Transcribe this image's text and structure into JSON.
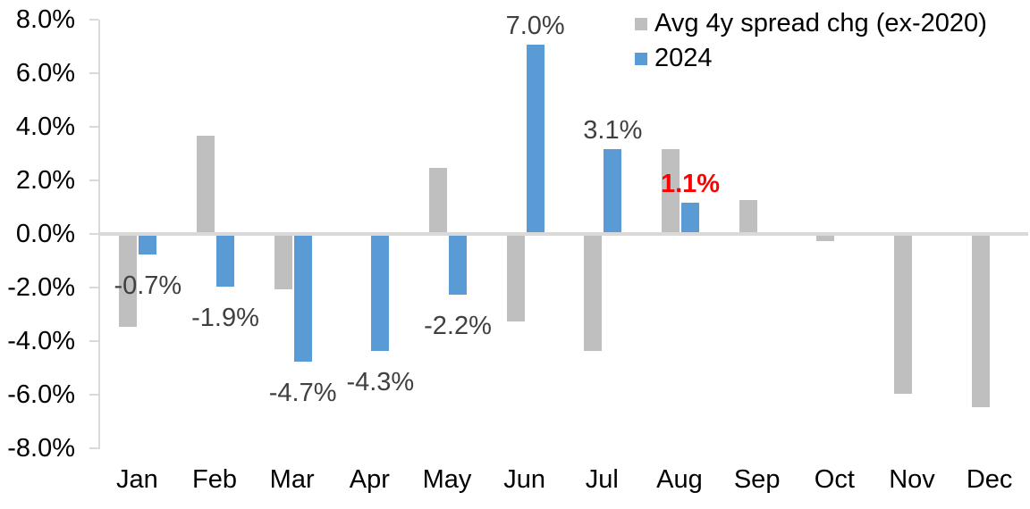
{
  "chart_data": {
    "type": "bar",
    "title": "",
    "xlabel": "",
    "ylabel": "",
    "categories": [
      "Jan",
      "Feb",
      "Mar",
      "Apr",
      "May",
      "Jun",
      "Jul",
      "Aug",
      "Sep",
      "Oct",
      "Nov",
      "Dec"
    ],
    "series": [
      {
        "name": "Avg 4y spread chg (ex-2020)",
        "color": "#BFBFBF",
        "values": [
          -3.4,
          3.6,
          -2.0,
          0.0,
          2.4,
          -3.2,
          -4.3,
          3.1,
          1.2,
          -0.2,
          -5.9,
          -6.4
        ]
      },
      {
        "name": "2024",
        "color": "#5B9BD5",
        "values": [
          -0.7,
          -1.9,
          -4.7,
          -4.3,
          -2.2,
          7.0,
          3.1,
          1.1,
          null,
          null,
          null,
          null
        ]
      }
    ],
    "data_labels": [
      {
        "category": "Jan",
        "text": "-0.7%",
        "color": "#404040",
        "bold": false
      },
      {
        "category": "Feb",
        "text": "-1.9%",
        "color": "#404040",
        "bold": false
      },
      {
        "category": "Mar",
        "text": "-4.7%",
        "color": "#404040",
        "bold": false
      },
      {
        "category": "Apr",
        "text": "-4.3%",
        "color": "#404040",
        "bold": false
      },
      {
        "category": "May",
        "text": "-2.2%",
        "color": "#404040",
        "bold": false
      },
      {
        "category": "Jun",
        "text": "7.0%",
        "color": "#404040",
        "bold": false
      },
      {
        "category": "Jul",
        "text": "3.1%",
        "color": "#404040",
        "bold": false
      },
      {
        "category": "Aug",
        "text": "1.1%",
        "color": "#FF0000",
        "bold": true
      }
    ],
    "y_axis": {
      "unit": "%",
      "min": -8.0,
      "max": 8.0,
      "tick_step": 2.0,
      "ticks": [
        "8.0%",
        "6.0%",
        "4.0%",
        "2.0%",
        "0.0%",
        "-2.0%",
        "-4.0%",
        "-6.0%",
        "-8.0%"
      ]
    },
    "grid": false,
    "axis_color": "#D9D9D9",
    "legend": {
      "position": "top-right",
      "entries": [
        {
          "label": "Avg 4y spread chg (ex-2020)",
          "color": "#BFBFBF"
        },
        {
          "label": "2024",
          "color": "#5B9BD5"
        }
      ]
    }
  }
}
